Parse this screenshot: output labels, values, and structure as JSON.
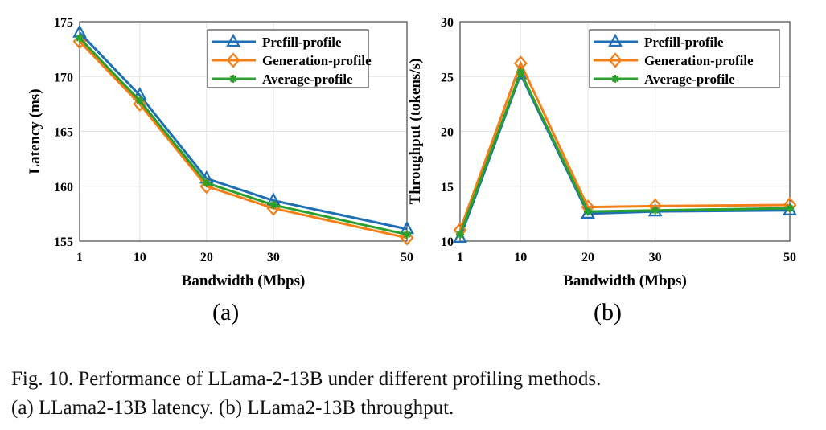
{
  "colors": {
    "prefill": "#1f6fb4",
    "generation": "#f57f17",
    "average": "#2ca02c",
    "grid": "#e3e3e3"
  },
  "chart_data": [
    {
      "type": "line",
      "title": "",
      "xlabel": "Bandwidth (Mbps)",
      "ylabel": "Latency (ms)",
      "x": [
        1,
        10,
        20,
        30,
        50
      ],
      "xticks": [
        "1",
        "10",
        "20",
        "30",
        "50"
      ],
      "xlim": [
        1,
        50
      ],
      "ylim": [
        155,
        175
      ],
      "yticks": [
        "155",
        "160",
        "165",
        "170",
        "175"
      ],
      "grid": true,
      "legend": "top-right",
      "series": [
        {
          "name": "Prefill-profile",
          "marker": "triangle",
          "values": [
            174.0,
            168.3,
            160.7,
            158.7,
            156.1
          ]
        },
        {
          "name": "Generation-profile",
          "marker": "diamond",
          "values": [
            173.2,
            167.5,
            160.0,
            158.0,
            155.3
          ]
        },
        {
          "name": "Average-profile",
          "marker": "asterisk",
          "values": [
            173.5,
            167.8,
            160.3,
            158.3,
            155.6
          ]
        }
      ],
      "panel": "(a)"
    },
    {
      "type": "line",
      "title": "",
      "xlabel": "Bandwidth (Mbps)",
      "ylabel": "Throughput (tokens/s)",
      "x": [
        1,
        10,
        20,
        30,
        50
      ],
      "xticks": [
        "1",
        "10",
        "20",
        "30",
        "50"
      ],
      "xlim": [
        1,
        50
      ],
      "ylim": [
        10,
        30
      ],
      "yticks": [
        "10",
        "15",
        "20",
        "25",
        "30"
      ],
      "grid": true,
      "legend": "top-right",
      "series": [
        {
          "name": "Prefill-profile",
          "marker": "triangle",
          "values": [
            10.3,
            25.2,
            12.5,
            12.7,
            12.8
          ]
        },
        {
          "name": "Generation-profile",
          "marker": "diamond",
          "values": [
            11.0,
            26.2,
            13.1,
            13.2,
            13.3
          ]
        },
        {
          "name": "Average-profile",
          "marker": "asterisk",
          "values": [
            10.6,
            25.4,
            12.7,
            12.8,
            13.0
          ]
        }
      ],
      "panel": "(b)"
    }
  ],
  "caption": {
    "line1": "Fig. 10.    Performance of LLama-2-13B under different profiling methods.",
    "line2": "(a) LLama2-13B latency. (b) LLama2-13B throughput."
  }
}
